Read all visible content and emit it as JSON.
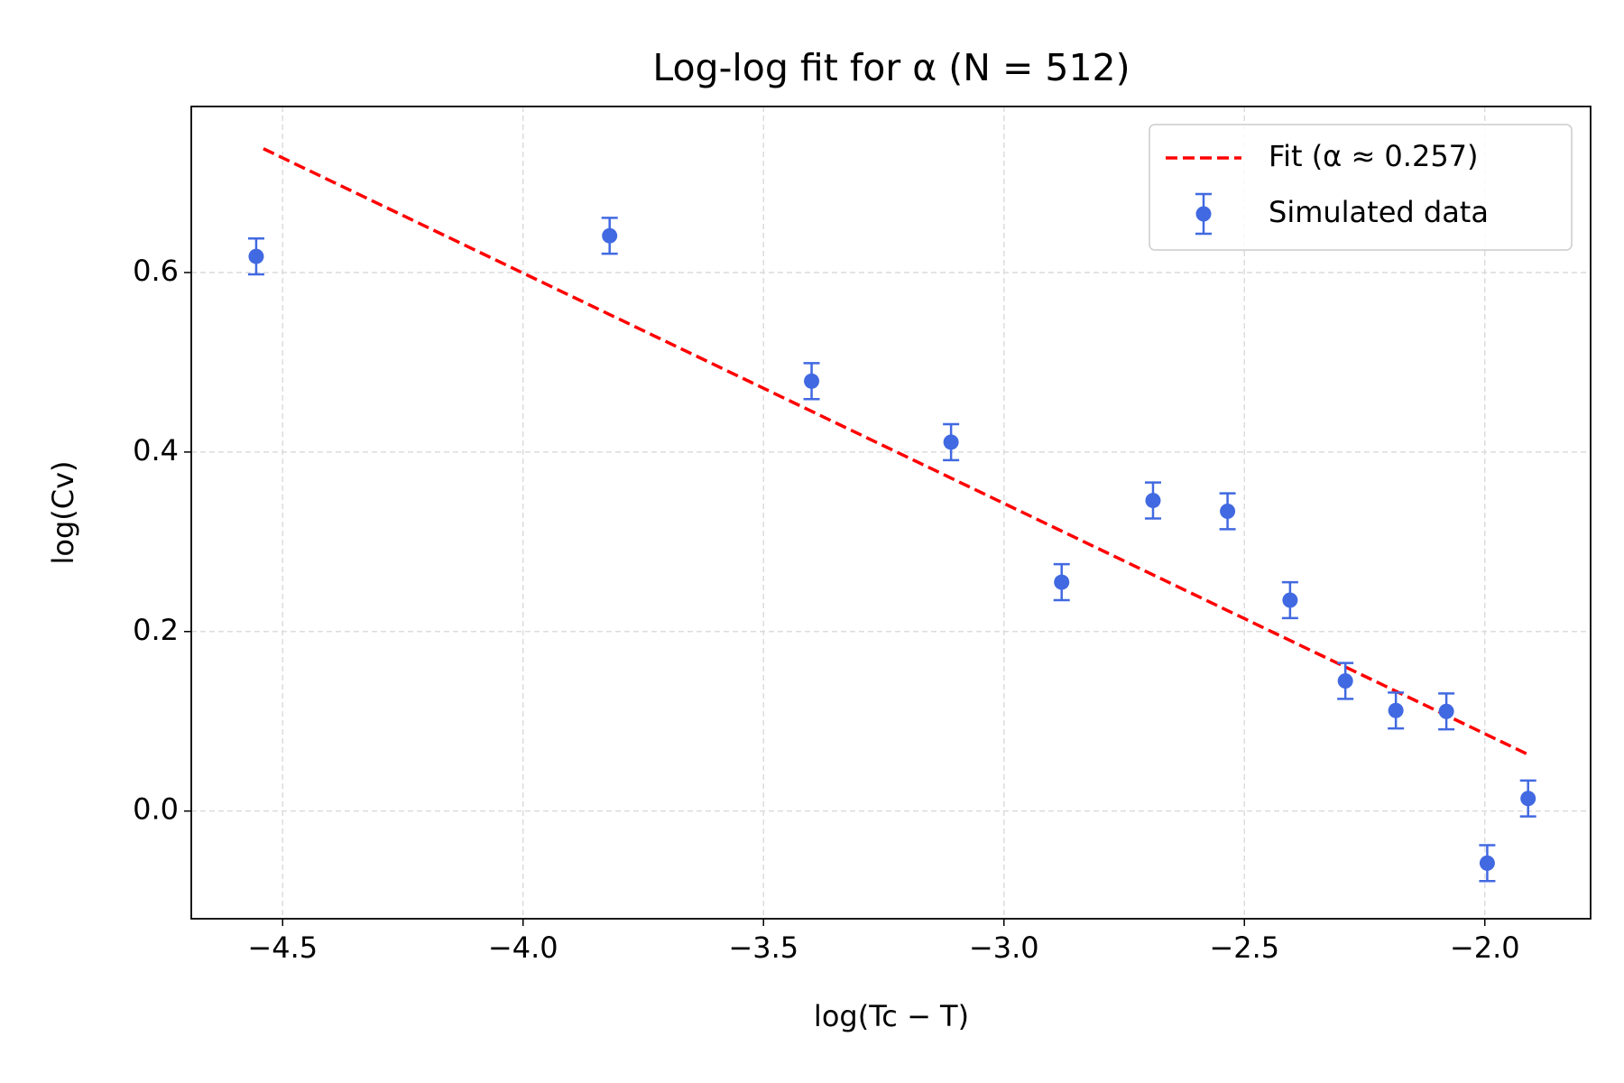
{
  "chart_data": {
    "type": "scatter",
    "title": "Log-log fit for α (N = 512)",
    "xlabel": "log(Tc − T)",
    "ylabel": "log(Cv)",
    "xlim": [
      -4.69,
      -1.78
    ],
    "ylim": [
      -0.12,
      0.785
    ],
    "xticks": [
      {
        "value": -4.5,
        "label": "−4.5"
      },
      {
        "value": -4.0,
        "label": "−4.0"
      },
      {
        "value": -3.5,
        "label": "−3.5"
      },
      {
        "value": -3.0,
        "label": "−3.0"
      },
      {
        "value": -2.5,
        "label": "−2.5"
      },
      {
        "value": -2.0,
        "label": "−2.0"
      }
    ],
    "yticks": [
      {
        "value": 0,
        "label": "0.0"
      },
      0.2,
      0.4,
      0.6
    ],
    "grid": true,
    "legend": "upper right",
    "series": [
      {
        "name": "Fit (α ≈ 0.257)",
        "color": "#ff0000",
        "style": "dashed",
        "x": [
          -4.54,
          -1.91
        ],
        "values": [
          0.738,
          0.063
        ]
      },
      {
        "name": "Simulated data",
        "color": "#4169e1",
        "style": "errorbar",
        "x": [
          -4.555,
          -3.82,
          -3.4,
          -3.11,
          -2.88,
          -2.69,
          -2.535,
          -2.405,
          -2.29,
          -2.185,
          -2.08,
          -1.995,
          -1.91
        ],
        "values": [
          0.618,
          0.641,
          0.479,
          0.411,
          0.255,
          0.346,
          0.334,
          0.235,
          0.145,
          0.112,
          0.111,
          -0.058,
          0.014
        ],
        "errors": [
          0.02,
          0.02,
          0.02,
          0.02,
          0.02,
          0.02,
          0.02,
          0.02,
          0.02,
          0.02,
          0.02,
          0.02,
          0.02
        ]
      }
    ]
  }
}
